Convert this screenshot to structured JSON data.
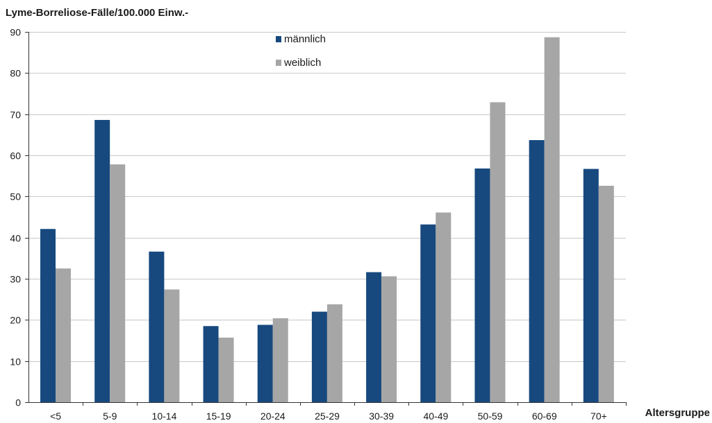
{
  "chart_data": {
    "type": "bar",
    "ylabel": "Lyme-Borreliose-Fälle/100.000 Einw.-",
    "xlabel": "Altersgruppe",
    "categories": [
      "<5",
      "5-9",
      "10-14",
      "15-19",
      "20-24",
      "25-29",
      "30-39",
      "40-49",
      "50-59",
      "60-69",
      "70+"
    ],
    "series": [
      {
        "name": "männlich",
        "color": "#17497e",
        "values": [
          42.1,
          68.6,
          36.6,
          18.5,
          18.8,
          22.0,
          31.6,
          43.2,
          56.8,
          63.7,
          56.7
        ]
      },
      {
        "name": "weiblich",
        "color": "#a6a6a6",
        "values": [
          32.5,
          57.8,
          27.4,
          15.7,
          20.4,
          23.8,
          30.6,
          46.1,
          72.9,
          88.7,
          52.6
        ]
      }
    ],
    "ylim": [
      0,
      90
    ],
    "yticks": [
      0,
      10,
      20,
      30,
      40,
      50,
      60,
      70,
      80,
      90
    ],
    "grid": true,
    "legend_position": "top-center"
  }
}
